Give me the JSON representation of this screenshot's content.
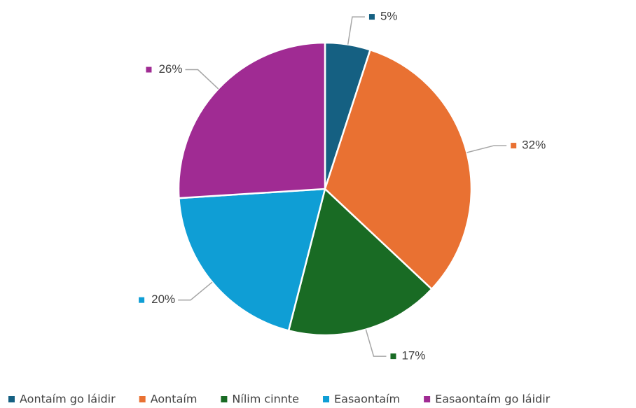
{
  "chart_data": {
    "type": "pie",
    "categories": [
      "Aontaím go láidir",
      "Aontaím",
      "Nílim cinnte",
      "Easaontaím",
      "Easaontaím go láidir"
    ],
    "values": [
      5,
      32,
      17,
      20,
      26
    ],
    "value_labels": [
      "5%",
      "32%",
      "17%",
      "20%",
      "26%"
    ],
    "colors": [
      "#156082",
      "#e97132",
      "#196b24",
      "#0f9ed5",
      "#a02b93"
    ],
    "legend": "bottom"
  }
}
